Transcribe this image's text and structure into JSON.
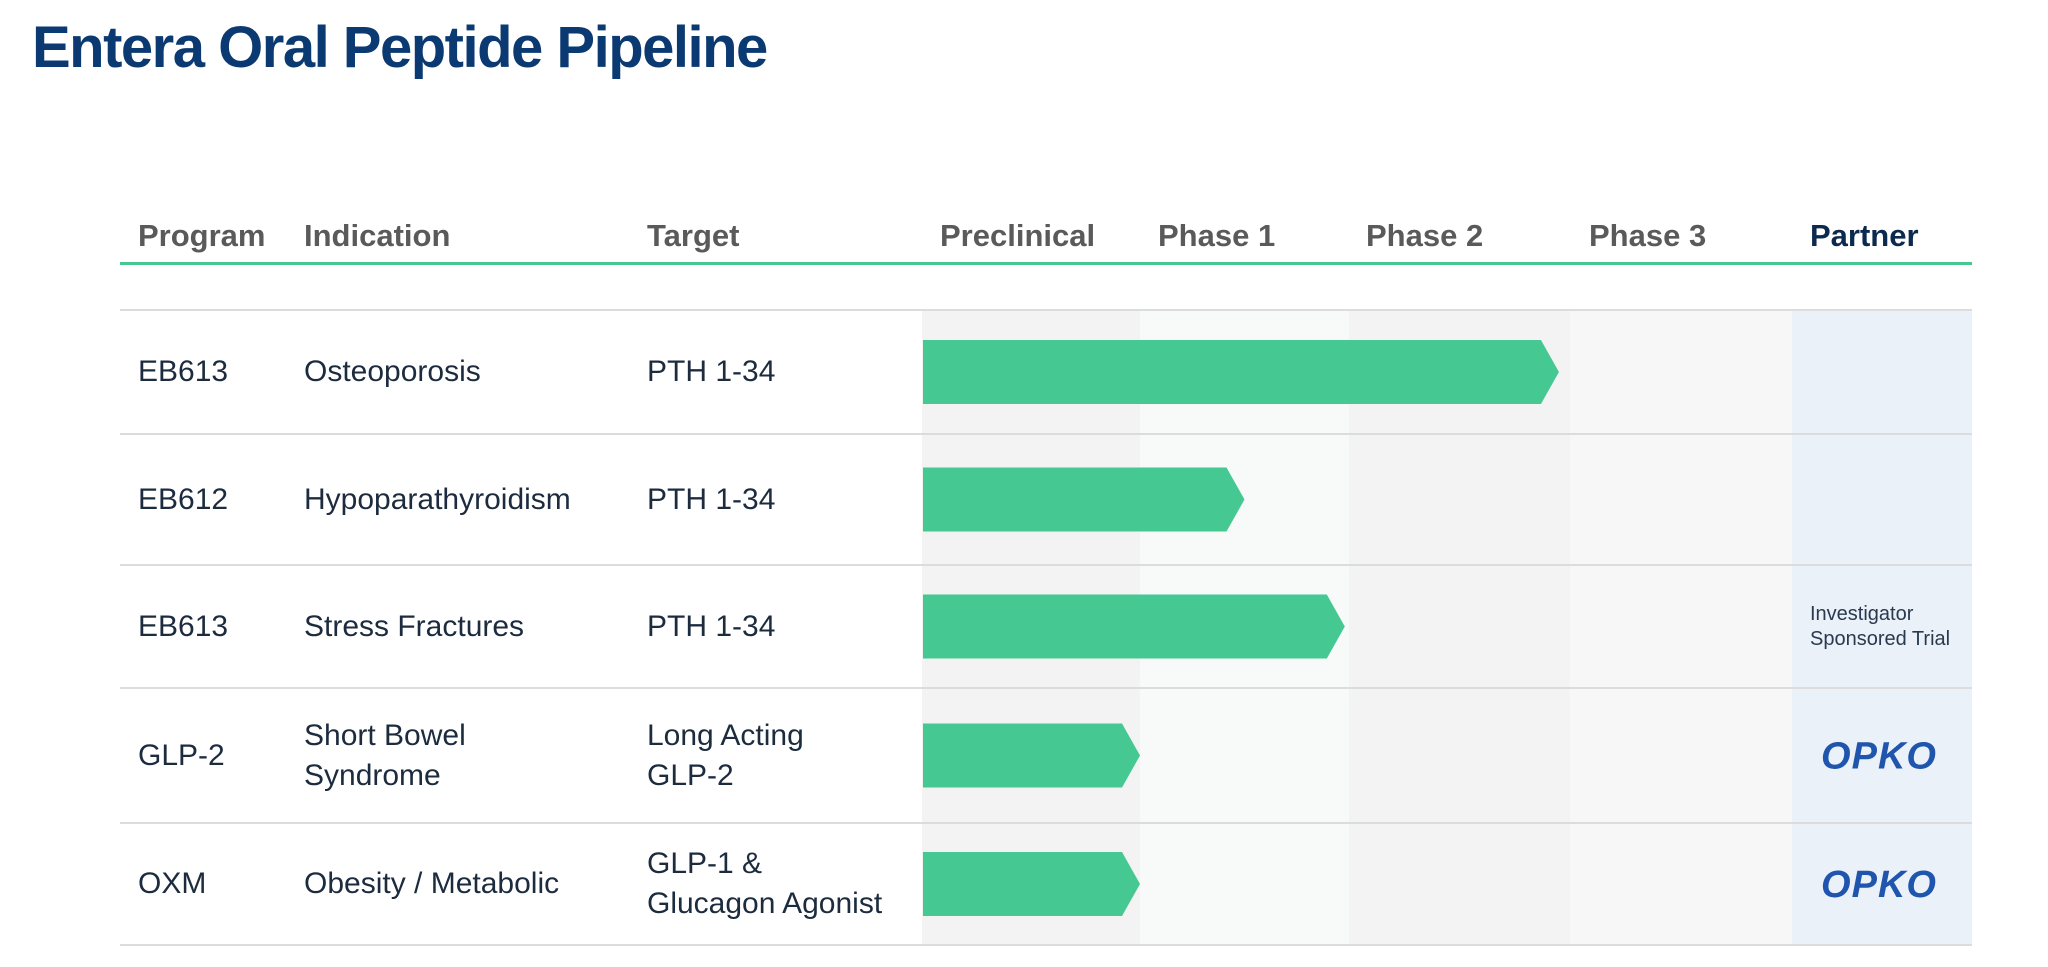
{
  "title": "Entera Oral Peptide Pipeline",
  "headers": {
    "program": "Program",
    "indication": "Indication",
    "target": "Target",
    "stages": [
      "Preclinical",
      "Phase 1",
      "Phase 2",
      "Phase 3"
    ],
    "partner": "Partner"
  },
  "colors": {
    "title": "#0b3a72",
    "bar": "#45c892",
    "header_line": "#45c892",
    "partner_column_bg": "#eaf1f9",
    "opko_logo": "#1f55ad"
  },
  "rows": [
    {
      "program": "EB613",
      "indication": "Osteoporosis",
      "target": "PTH 1-34",
      "partner": "",
      "partner_logo": ""
    },
    {
      "program": "EB612",
      "indication": "Hypoparathyroidism",
      "target": "PTH 1-34",
      "partner": "",
      "partner_logo": ""
    },
    {
      "program": "EB613",
      "indication": "Stress Fractures",
      "target": "PTH 1-34",
      "partner": "Investigator\nSponsored Trial",
      "partner_logo": ""
    },
    {
      "program": "GLP-2",
      "indication": "Short Bowel\nSyndrome",
      "target": "Long Acting\nGLP-2",
      "partner": "",
      "partner_logo": "OPKO"
    },
    {
      "program": "OXM",
      "indication": "Obesity / Metabolic",
      "target": "GLP-1 &\nGlucagon Agonist",
      "partner": "",
      "partner_logo": "OPKO"
    }
  ],
  "chart_data": {
    "type": "bar",
    "orientation": "horizontal",
    "categories": [
      "EB613 Osteoporosis",
      "EB612 Hypoparathyroidism",
      "EB613 Stress Fractures",
      "GLP-2 Short Bowel Syndrome",
      "OXM Obesity / Metabolic"
    ],
    "stages": [
      "Preclinical",
      "Phase 1",
      "Phase 2",
      "Phase 3"
    ],
    "values": [
      2.95,
      1.5,
      1.98,
      1.0,
      1.0
    ],
    "xlim": [
      0,
      4
    ]
  }
}
